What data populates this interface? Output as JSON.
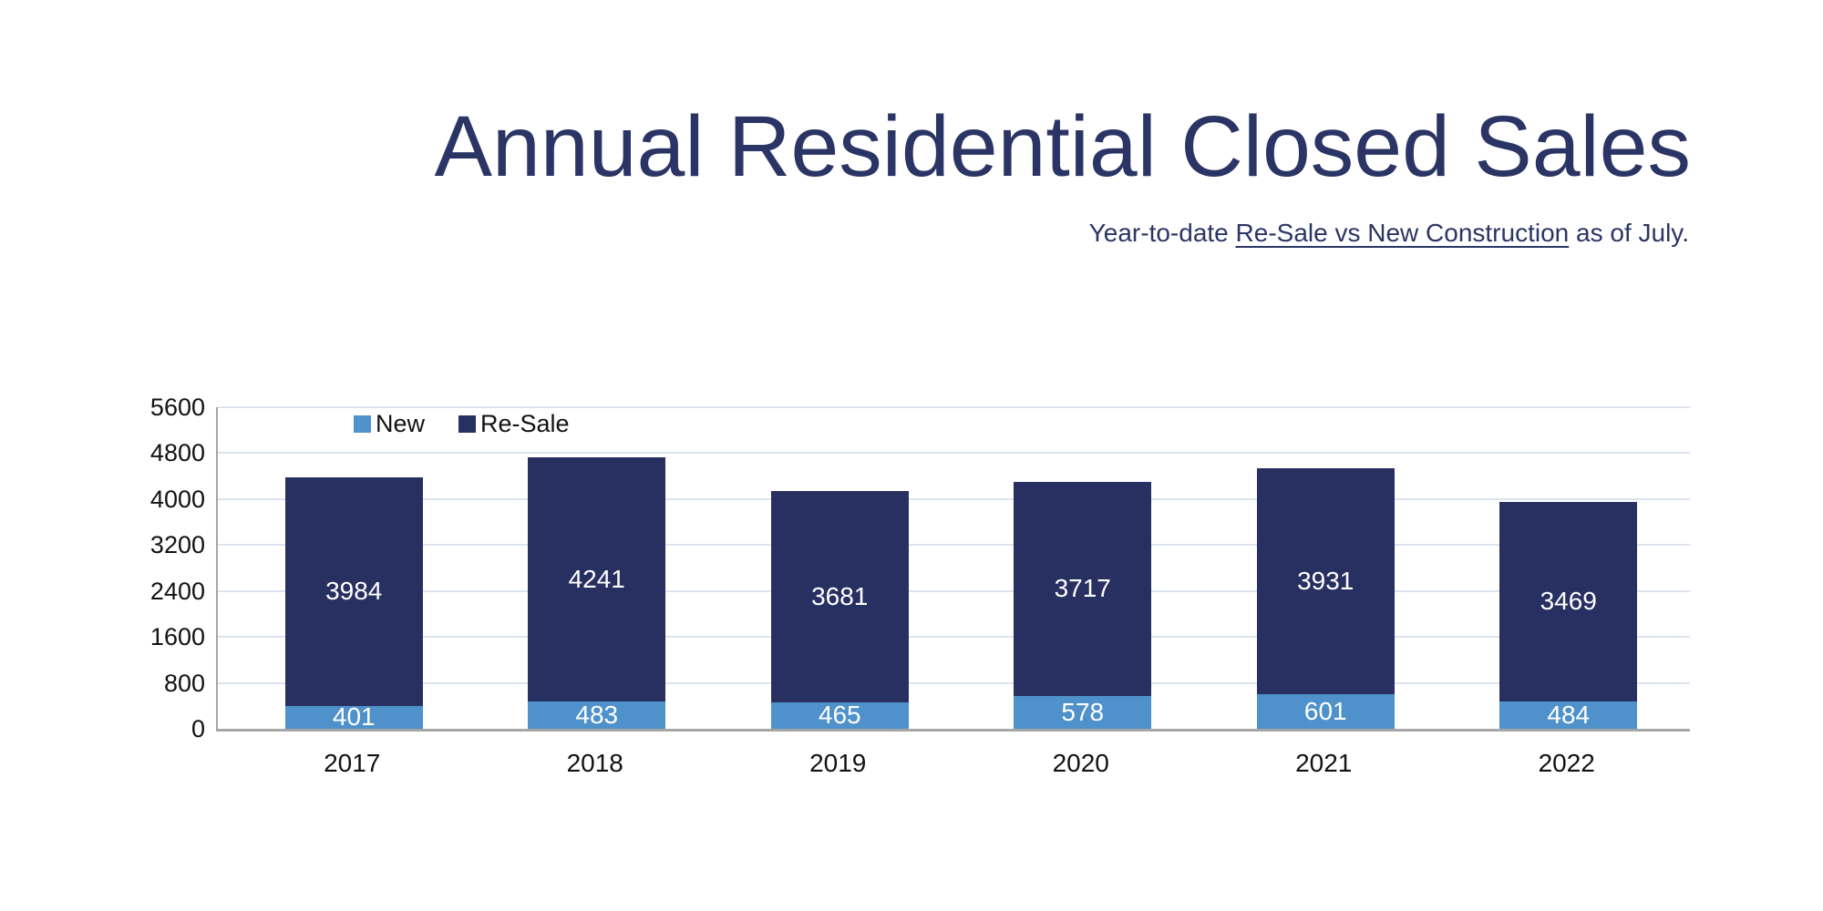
{
  "header": {
    "title": "Annual Residential Closed Sales",
    "subtitle_prefix": "Year-to-date ",
    "subtitle_underlined": "Re-Sale vs New Construction",
    "subtitle_suffix": " as of July."
  },
  "chart_data": {
    "type": "bar",
    "stacked": true,
    "title": "Annual Residential Closed Sales",
    "subtitle": "Year-to-date Re-Sale vs New Construction as of July.",
    "categories": [
      "2017",
      "2018",
      "2019",
      "2020",
      "2021",
      "2022"
    ],
    "series": [
      {
        "name": "New",
        "color": "#4e91cb",
        "values": [
          401,
          483,
          465,
          578,
          601,
          484
        ]
      },
      {
        "name": "Re-Sale",
        "color": "#283061",
        "values": [
          3984,
          4241,
          3681,
          3717,
          3931,
          3469
        ]
      }
    ],
    "y_ticks": [
      0,
      800,
      1600,
      2400,
      3200,
      4000,
      4800,
      5600
    ],
    "ylim": [
      0,
      5600
    ],
    "xlabel": "",
    "ylabel": "",
    "grid": true,
    "legend_position": "top-left-inside",
    "data_labels": "white, inside segments"
  },
  "colors": {
    "title_navy": "#2b3565",
    "resale_navy": "#283061",
    "new_blue": "#4e91cb",
    "gridline": "#dde4f1",
    "axis_line": "#a6a6a6",
    "tick_text": "#121212",
    "background": "#ffffff"
  }
}
